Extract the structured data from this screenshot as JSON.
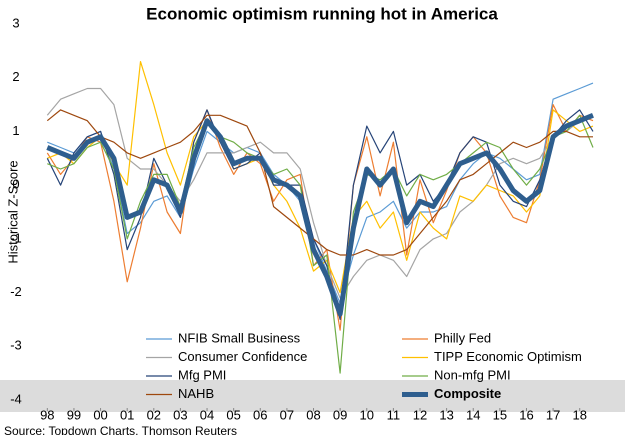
{
  "chart_data": {
    "type": "line",
    "title": "Economic optimism running hot in America",
    "y_label": "Historical Z-Score",
    "source": "Source: Topdown Charts, Thomson Reuters",
    "legend": "bottom",
    "grid": false,
    "xlim": [
      1997.8,
      2018.95
    ],
    "ylim": [
      -4,
      3
    ],
    "yticks": [
      -4,
      -3,
      -2,
      -1,
      0,
      1,
      2,
      3
    ],
    "xticks": [
      {
        "value": 1998,
        "label": "98"
      },
      {
        "value": 1999,
        "label": "99"
      },
      {
        "value": 2000,
        "label": "00"
      },
      {
        "value": 2001,
        "label": "01"
      },
      {
        "value": 2002,
        "label": "02"
      },
      {
        "value": 2003,
        "label": "03"
      },
      {
        "value": 2004,
        "label": "04"
      },
      {
        "value": 2005,
        "label": "05"
      },
      {
        "value": 2006,
        "label": "06"
      },
      {
        "value": 2007,
        "label": "07"
      },
      {
        "value": 2008,
        "label": "08"
      },
      {
        "value": 2009,
        "label": "09"
      },
      {
        "value": 2010,
        "label": "10"
      },
      {
        "value": 2011,
        "label": "11"
      },
      {
        "value": 2012,
        "label": "12"
      },
      {
        "value": 2013,
        "label": "13"
      },
      {
        "value": 2014,
        "label": "14"
      },
      {
        "value": 2015,
        "label": "15"
      },
      {
        "value": 2016,
        "label": "16"
      },
      {
        "value": 2017,
        "label": "17"
      },
      {
        "value": 2018,
        "label": "18"
      }
    ],
    "x": [
      1998,
      1998.5,
      1999,
      1999.5,
      2000,
      2000.5,
      2001,
      2001.5,
      2002,
      2002.5,
      2003,
      2003.5,
      2004,
      2004.5,
      2005,
      2005.5,
      2006,
      2006.5,
      2007,
      2007.5,
      2008,
      2008.5,
      2009,
      2009.5,
      2010,
      2010.5,
      2011,
      2011.5,
      2012,
      2012.5,
      2013,
      2013.5,
      2014,
      2014.5,
      2015,
      2015.5,
      2016,
      2016.5,
      2017,
      2017.5,
      2018,
      2018.5
    ],
    "series": [
      {
        "name": "NFIB Small Business",
        "color": "#5b9bd5",
        "width": 1.2,
        "values": [
          0.8,
          0.7,
          0.6,
          0.9,
          1.0,
          0.3,
          -0.9,
          -0.7,
          -0.3,
          -0.2,
          -0.6,
          0.3,
          1.0,
          0.8,
          0.6,
          0.7,
          0.6,
          0.2,
          0.0,
          -0.3,
          -1.0,
          -1.6,
          -2.2,
          -1.3,
          -0.6,
          -0.5,
          -0.3,
          -0.8,
          -0.5,
          -0.5,
          -0.4,
          0.1,
          0.4,
          0.6,
          0.5,
          0.3,
          0.1,
          0.2,
          1.6,
          1.7,
          1.8,
          1.9
        ]
      },
      {
        "name": "Philly Fed",
        "color": "#ed7d31",
        "width": 1.2,
        "values": [
          0.6,
          0.2,
          0.5,
          0.9,
          0.8,
          -0.3,
          -1.8,
          -0.8,
          0.4,
          -0.5,
          -0.9,
          0.8,
          1.4,
          0.7,
          0.2,
          0.6,
          0.4,
          -0.3,
          0.1,
          0.2,
          -1.5,
          -1.2,
          -2.7,
          0.0,
          0.9,
          -0.2,
          0.8,
          -1.3,
          0.1,
          -0.7,
          -0.1,
          0.6,
          0.9,
          0.6,
          -0.2,
          -0.6,
          -0.7,
          0.1,
          1.5,
          1.0,
          1.3,
          1.2
        ]
      },
      {
        "name": "Consumer Confidence",
        "color": "#a5a5a5",
        "width": 1.2,
        "values": [
          1.3,
          1.6,
          1.7,
          1.8,
          1.8,
          1.5,
          0.5,
          0.3,
          0.3,
          0.0,
          -0.3,
          0.1,
          0.6,
          0.6,
          0.6,
          0.7,
          0.8,
          0.6,
          0.6,
          0.3,
          -0.7,
          -1.5,
          -2.1,
          -1.7,
          -1.4,
          -1.3,
          -1.4,
          -1.7,
          -1.2,
          -1.0,
          -0.9,
          -0.5,
          -0.3,
          0.0,
          0.4,
          0.5,
          0.4,
          0.5,
          0.9,
          1.0,
          1.2,
          1.3
        ]
      },
      {
        "name": "TIPP Economic Optimism",
        "color": "#ffc000",
        "width": 1.2,
        "values": [
          0.5,
          0.6,
          0.4,
          0.7,
          0.9,
          0.4,
          0.0,
          2.3,
          1.5,
          0.6,
          0.0,
          0.9,
          1.2,
          0.9,
          0.3,
          0.4,
          0.5,
          0.0,
          -0.3,
          -0.8,
          -1.6,
          -1.4,
          -2.0,
          -0.6,
          -0.3,
          -0.8,
          -0.5,
          -1.4,
          -0.5,
          -0.8,
          -1.0,
          -0.2,
          -0.3,
          0.0,
          -0.1,
          -0.2,
          -0.5,
          -0.2,
          1.4,
          1.2,
          1.0,
          1.1
        ]
      },
      {
        "name": "Mfg PMI",
        "color": "#264478",
        "width": 1.2,
        "values": [
          0.5,
          0.0,
          0.6,
          0.9,
          1.0,
          0.2,
          -1.2,
          -0.6,
          0.5,
          0.0,
          -0.6,
          0.8,
          1.4,
          0.8,
          0.3,
          0.4,
          0.6,
          0.0,
          0.0,
          0.0,
          -1.0,
          -1.5,
          -2.5,
          0.0,
          1.1,
          0.6,
          1.0,
          0.0,
          0.2,
          -0.3,
          0.0,
          0.6,
          0.9,
          0.8,
          0.0,
          -0.3,
          -0.4,
          0.1,
          0.9,
          1.2,
          1.4,
          1.0
        ]
      },
      {
        "name": "Non-mfg PMI",
        "color": "#70ad47",
        "width": 1.2,
        "values": [
          0.4,
          0.3,
          0.4,
          0.7,
          0.8,
          0.3,
          -1.0,
          -0.3,
          0.2,
          0.2,
          -0.4,
          0.7,
          1.2,
          0.9,
          0.8,
          0.6,
          0.5,
          0.2,
          0.3,
          0.0,
          -1.5,
          -1.3,
          -3.5,
          -0.5,
          0.2,
          0.1,
          0.3,
          -0.2,
          0.2,
          0.1,
          0.2,
          0.4,
          0.6,
          0.8,
          0.7,
          0.3,
          0.0,
          0.3,
          0.9,
          1.0,
          1.3,
          0.7
        ]
      },
      {
        "name": "NAHB",
        "color": "#9e480e",
        "width": 1.2,
        "values": [
          1.2,
          1.4,
          1.3,
          1.2,
          0.9,
          0.8,
          0.6,
          0.5,
          0.6,
          0.7,
          0.8,
          1.0,
          1.3,
          1.3,
          1.2,
          1.1,
          0.6,
          -0.4,
          -0.6,
          -0.8,
          -1.0,
          -1.2,
          -1.3,
          -1.3,
          -1.2,
          -1.3,
          -1.3,
          -1.2,
          -0.9,
          -0.6,
          -0.3,
          0.1,
          0.2,
          0.4,
          0.6,
          0.8,
          0.7,
          0.8,
          1.0,
          1.0,
          0.9,
          0.9
        ]
      },
      {
        "name": "Composite",
        "color": "#2e5e8e",
        "width": 5,
        "values": [
          0.7,
          0.6,
          0.5,
          0.8,
          0.9,
          0.5,
          -0.6,
          -0.5,
          0.1,
          0.0,
          -0.5,
          0.5,
          1.2,
          0.9,
          0.4,
          0.5,
          0.5,
          0.1,
          0.0,
          -0.2,
          -1.2,
          -1.7,
          -2.4,
          -0.8,
          0.3,
          0.0,
          0.3,
          -0.7,
          -0.3,
          -0.4,
          0.0,
          0.4,
          0.5,
          0.6,
          0.3,
          -0.1,
          -0.3,
          -0.1,
          0.9,
          1.1,
          1.2,
          1.3
        ]
      }
    ]
  }
}
